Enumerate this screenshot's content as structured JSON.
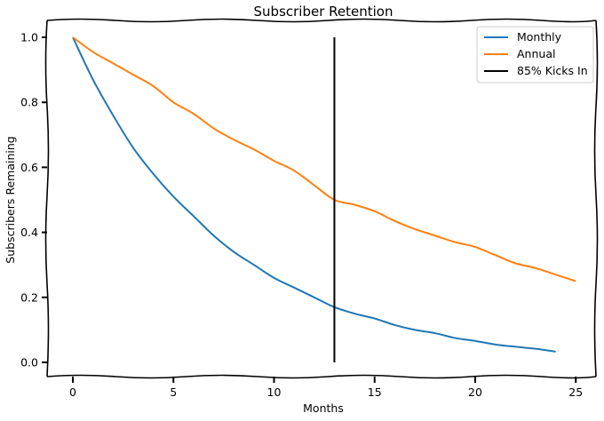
{
  "chart_data": {
    "type": "line",
    "title": "Subscriber Retention",
    "xlabel": "Months",
    "ylabel": "Subscribers Remaining",
    "xlim": [
      -1.2,
      26.2
    ],
    "ylim": [
      -0.045,
      1.05
    ],
    "xticks": [
      0,
      5,
      10,
      15,
      20,
      25
    ],
    "xtick_labels": [
      "0",
      "5",
      "10",
      "15",
      "20",
      "25"
    ],
    "yticks": [
      0.0,
      0.2,
      0.4,
      0.6,
      0.8,
      1.0
    ],
    "ytick_labels": [
      "0.0",
      "0.2",
      "0.4",
      "0.6",
      "0.8",
      "1.0"
    ],
    "grid": false,
    "style": "xkcd",
    "legend_position": "upper right",
    "series": [
      {
        "name": "Monthly",
        "color": "#1f77b4",
        "x": [
          0,
          1,
          2,
          3,
          4,
          5,
          6,
          7,
          8,
          9,
          10,
          11,
          12,
          13,
          14,
          15,
          16,
          17,
          18,
          19,
          20,
          21,
          22,
          23,
          24
        ],
        "values": [
          1.0,
          0.87,
          0.76,
          0.66,
          0.58,
          0.51,
          0.45,
          0.39,
          0.34,
          0.3,
          0.26,
          0.23,
          0.2,
          0.17,
          0.15,
          0.135,
          0.115,
          0.1,
          0.09,
          0.075,
          0.066,
          0.055,
          0.048,
          0.042,
          0.033
        ]
      },
      {
        "name": "Annual",
        "color": "#ff7f0e",
        "x": [
          0,
          1,
          2,
          3,
          4,
          5,
          6,
          7,
          8,
          9,
          10,
          11,
          12,
          13,
          14,
          15,
          16,
          17,
          18,
          19,
          20,
          21,
          22,
          23,
          24,
          25
        ],
        "values": [
          1.0,
          0.955,
          0.92,
          0.885,
          0.85,
          0.8,
          0.765,
          0.72,
          0.685,
          0.655,
          0.62,
          0.59,
          0.545,
          0.5,
          0.485,
          0.465,
          0.435,
          0.41,
          0.39,
          0.37,
          0.355,
          0.33,
          0.305,
          0.29,
          0.27,
          0.25
        ]
      }
    ],
    "vlines": [
      {
        "name": "85% Kicks In",
        "x": 13,
        "ymin": 0.0,
        "ymax": 1.0,
        "color": "#000000"
      }
    ],
    "legend": [
      "Monthly",
      "Annual",
      "85% Kicks In"
    ]
  }
}
